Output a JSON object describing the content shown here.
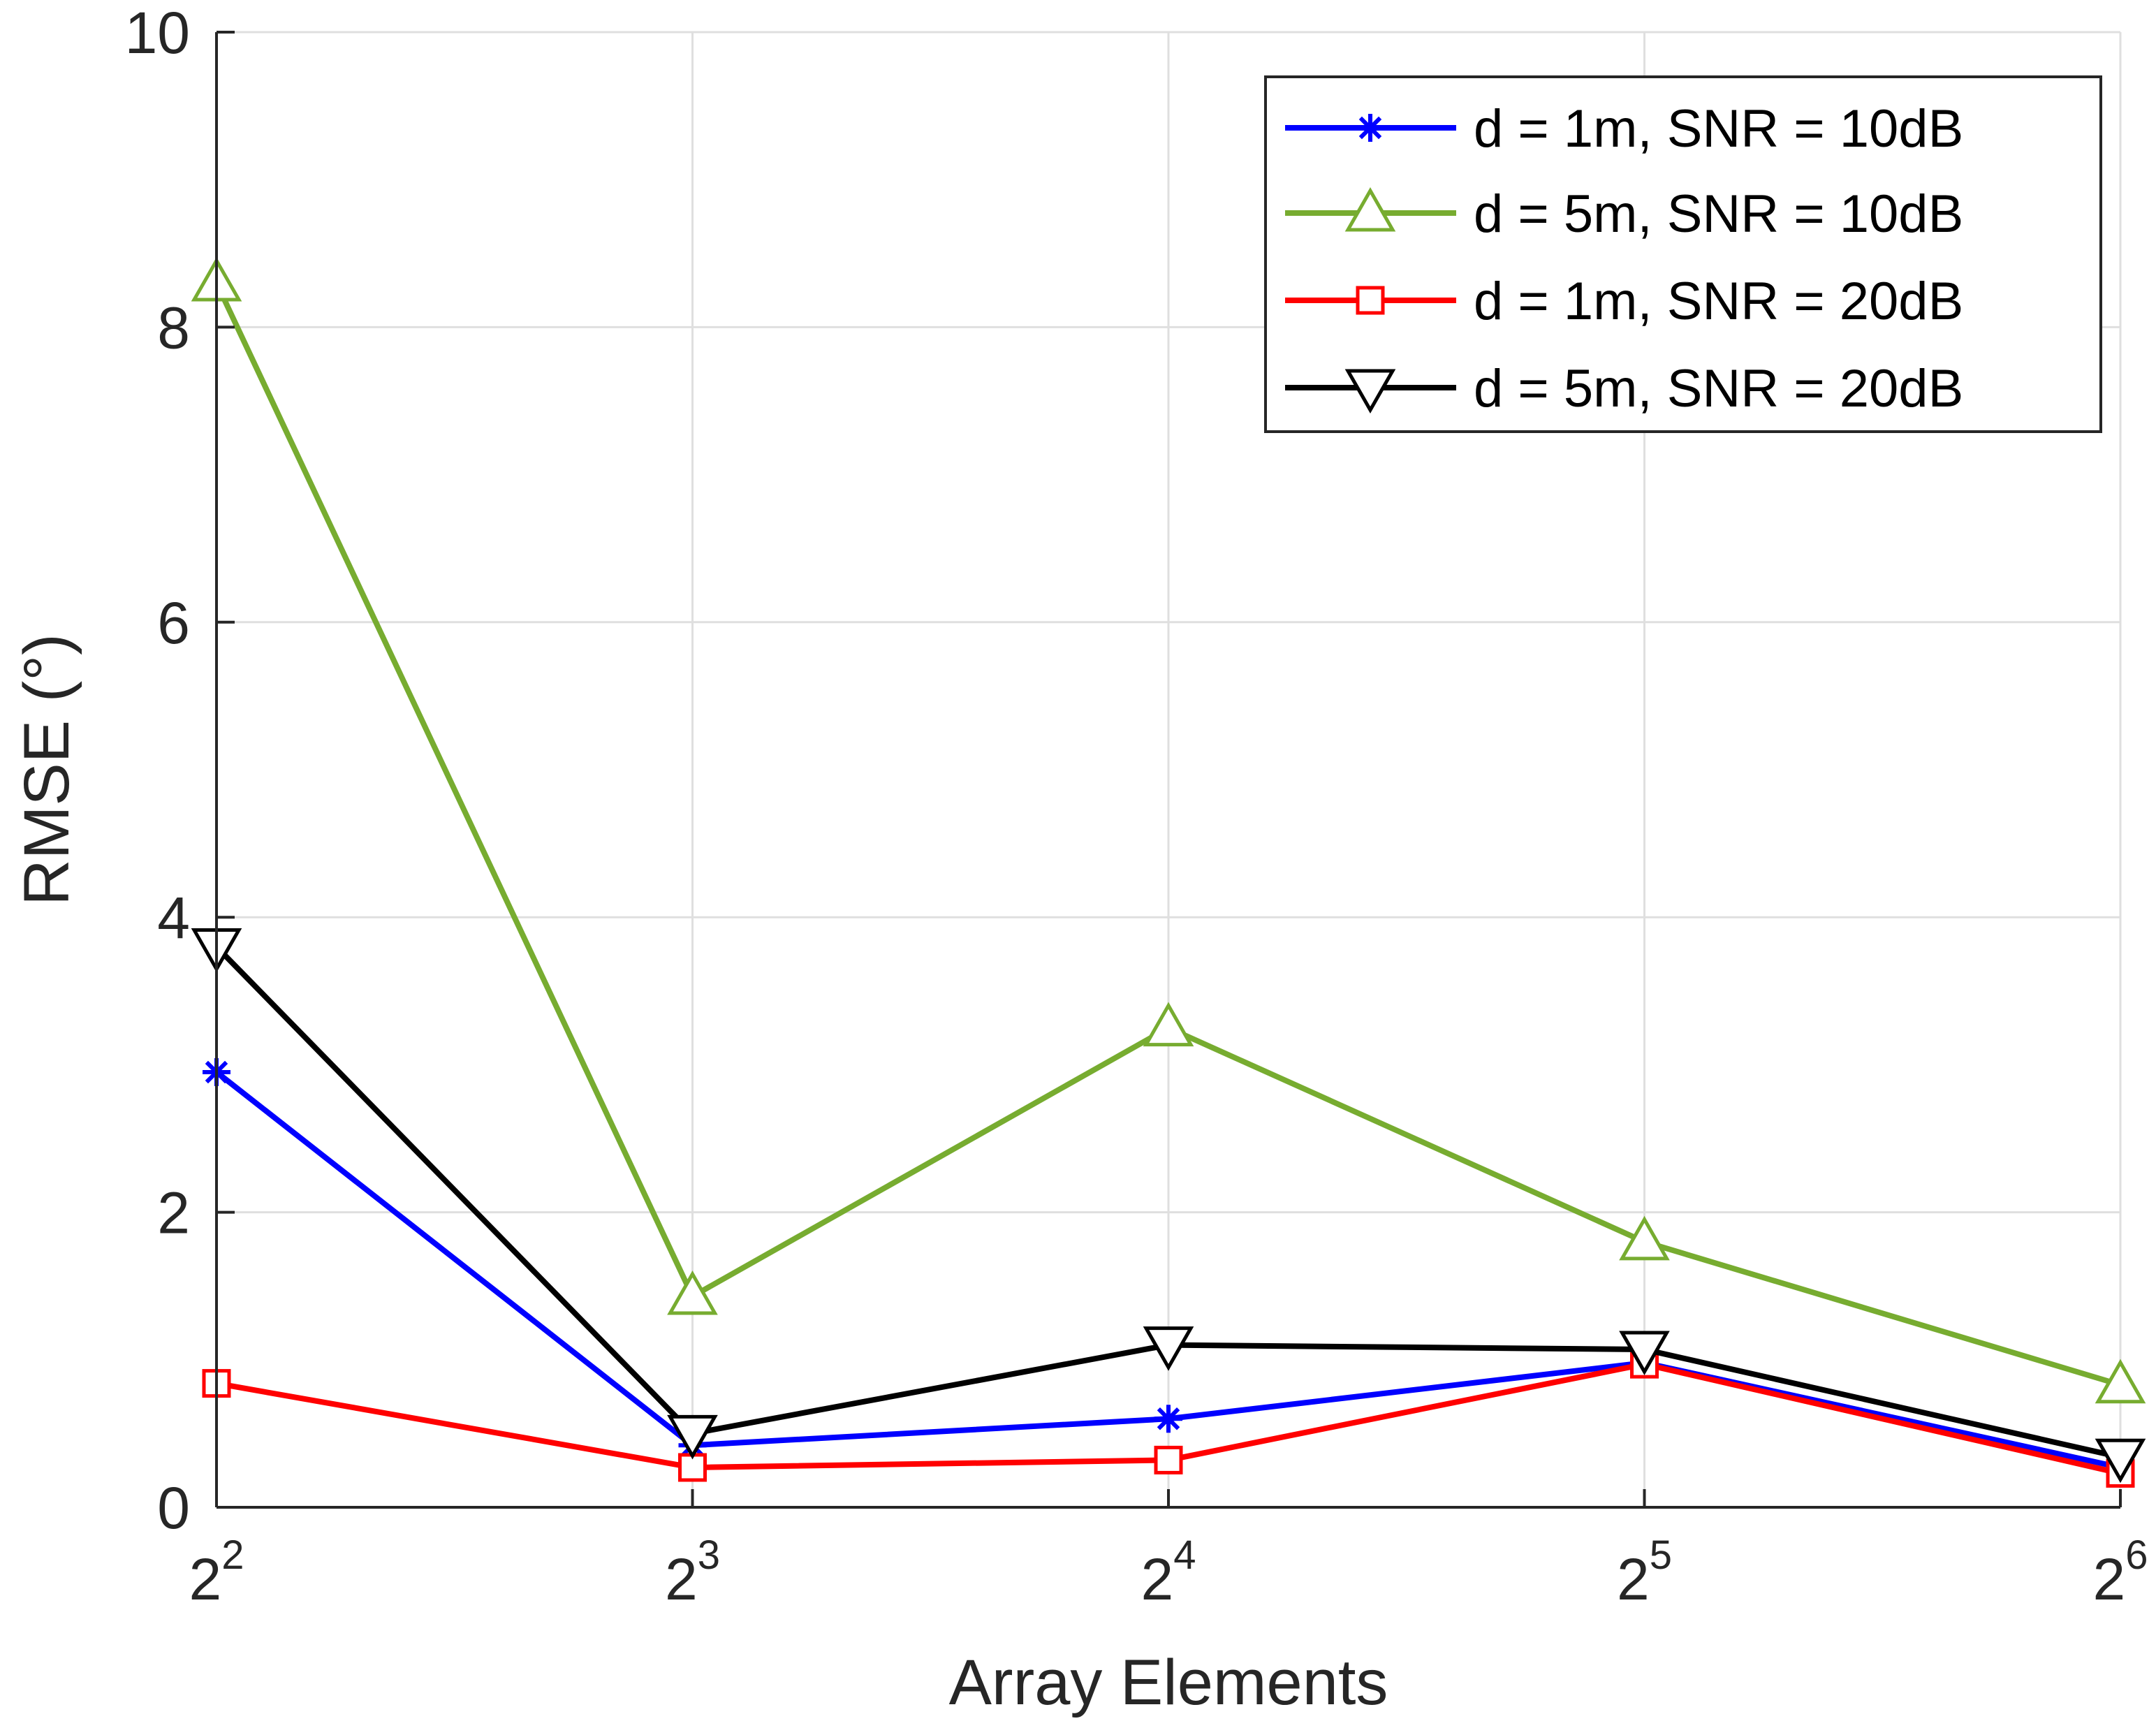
{
  "chart_data": {
    "type": "line",
    "title": "",
    "xlabel": "Array Elements",
    "ylabel": "RMSE (°)",
    "x": [
      2,
      3,
      4,
      5,
      6
    ],
    "x_tick_labels": [
      {
        "base": "2",
        "exp": "2"
      },
      {
        "base": "2",
        "exp": "3"
      },
      {
        "base": "2",
        "exp": "4"
      },
      {
        "base": "2",
        "exp": "5"
      },
      {
        "base": "2",
        "exp": "6"
      }
    ],
    "xlim": [
      2,
      6
    ],
    "ylim": [
      0,
      10
    ],
    "y_ticks": [
      "0",
      "2",
      "4",
      "6",
      "8",
      "10"
    ],
    "grid": true,
    "legend_position": "top-right",
    "series": [
      {
        "name": "d = 1m, SNR = 10dB",
        "color": "#0000ff",
        "marker": "asterisk",
        "values": [
          2.95,
          0.42,
          0.6,
          0.98,
          0.27
        ]
      },
      {
        "name": "d = 5m, SNR = 10dB",
        "color": "#77ac30",
        "marker": "triangle-up",
        "values": [
          8.3,
          1.43,
          3.25,
          1.8,
          0.83
        ]
      },
      {
        "name": "d = 1m, SNR = 20dB",
        "color": "#ff0000",
        "marker": "square",
        "values": [
          0.84,
          0.27,
          0.32,
          0.97,
          0.23
        ]
      },
      {
        "name": "d = 5m, SNR = 20dB",
        "color": "#000000",
        "marker": "triangle-down",
        "values": [
          3.8,
          0.5,
          1.1,
          1.07,
          0.34
        ]
      }
    ]
  }
}
